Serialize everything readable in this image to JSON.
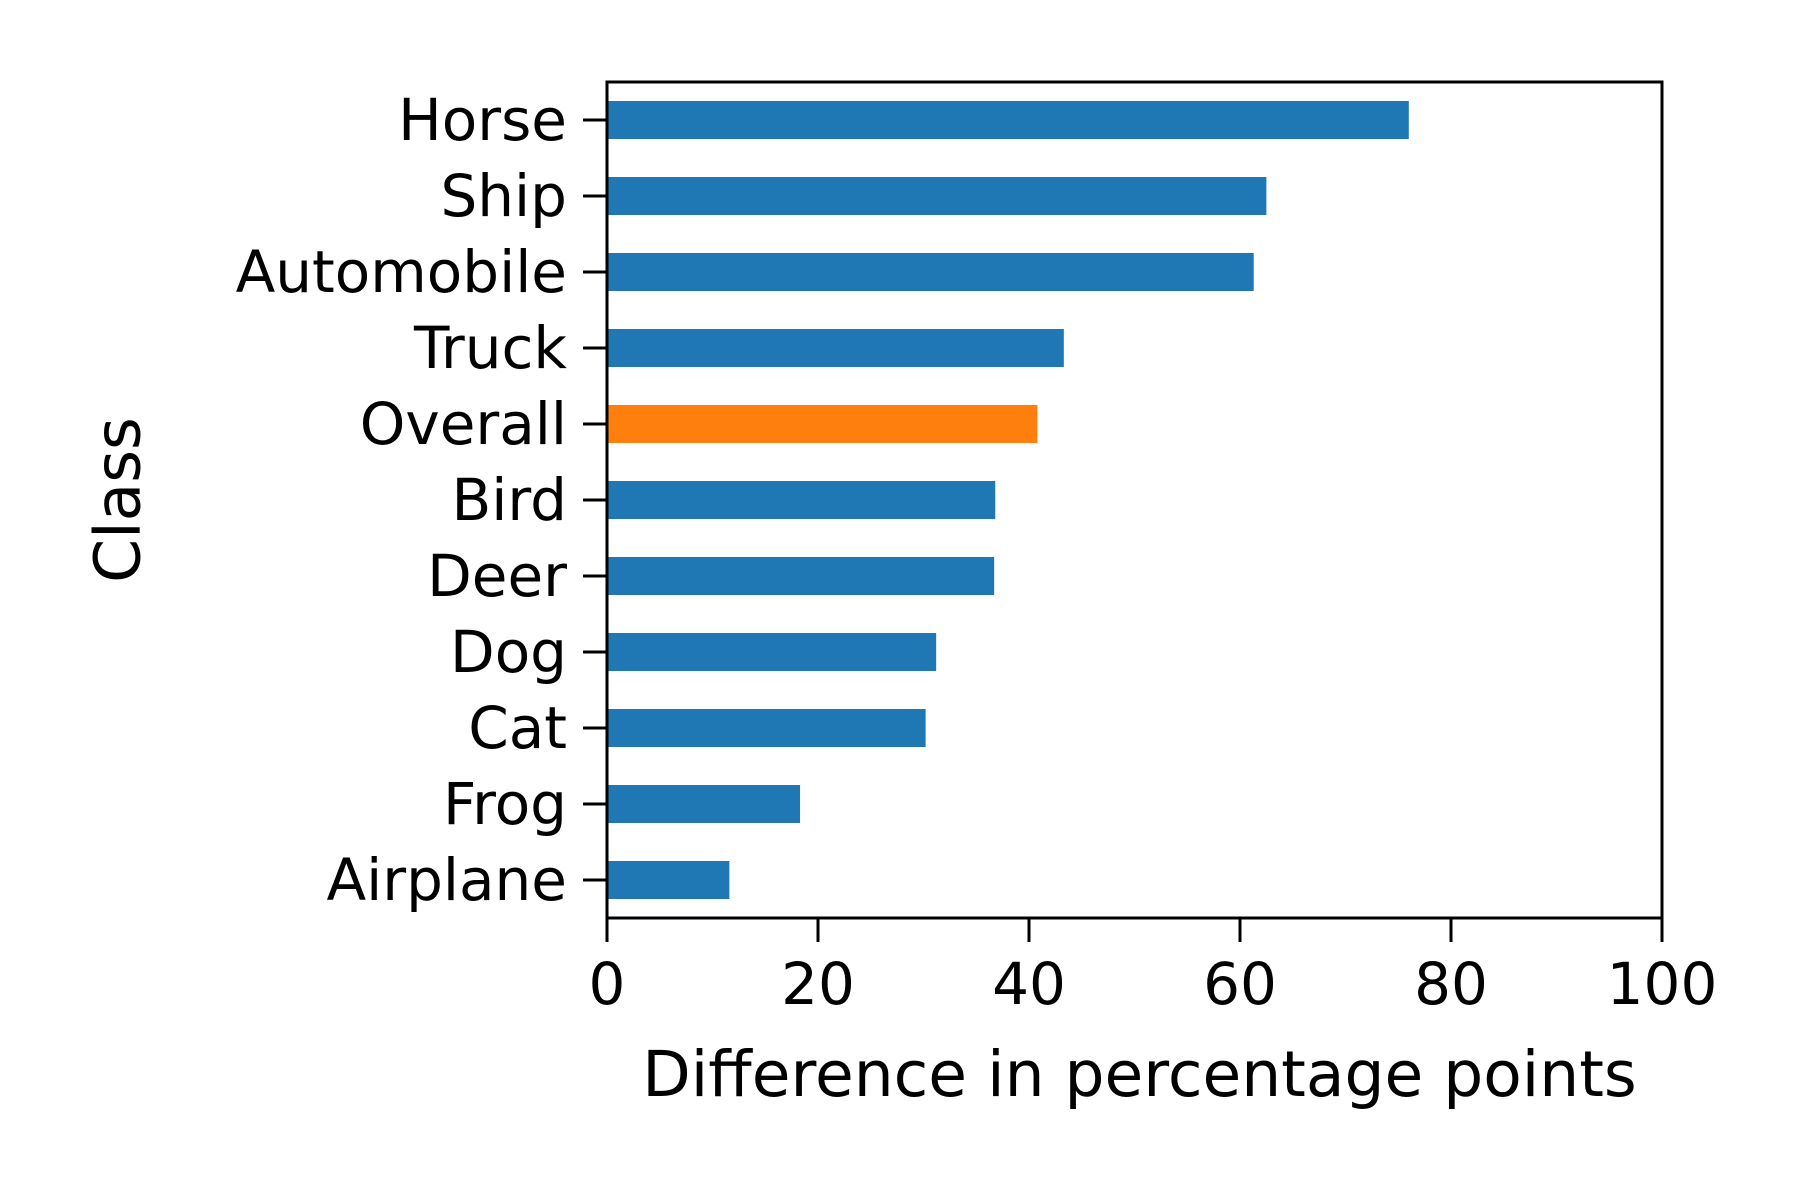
{
  "chart_data": {
    "type": "bar",
    "orientation": "horizontal",
    "title": "",
    "xlabel": "Difference in percentage points",
    "ylabel": "Class",
    "xlim": [
      0,
      100
    ],
    "xticks": [
      "0",
      "20",
      "40",
      "60",
      "80",
      "100"
    ],
    "grid": false,
    "legend": "none",
    "categories": [
      "Horse",
      "Ship",
      "Automobile",
      "Truck",
      "Overall",
      "Bird",
      "Deer",
      "Dog",
      "Cat",
      "Frog",
      "Airplane"
    ],
    "values": [
      76,
      62.5,
      61.3,
      43.3,
      40.8,
      36.8,
      36.7,
      31.2,
      30.2,
      18.3,
      11.6
    ],
    "colors": {
      "default": "#1f77b4",
      "highlight": "#ff7f0e",
      "highlight_category": "Overall"
    }
  }
}
